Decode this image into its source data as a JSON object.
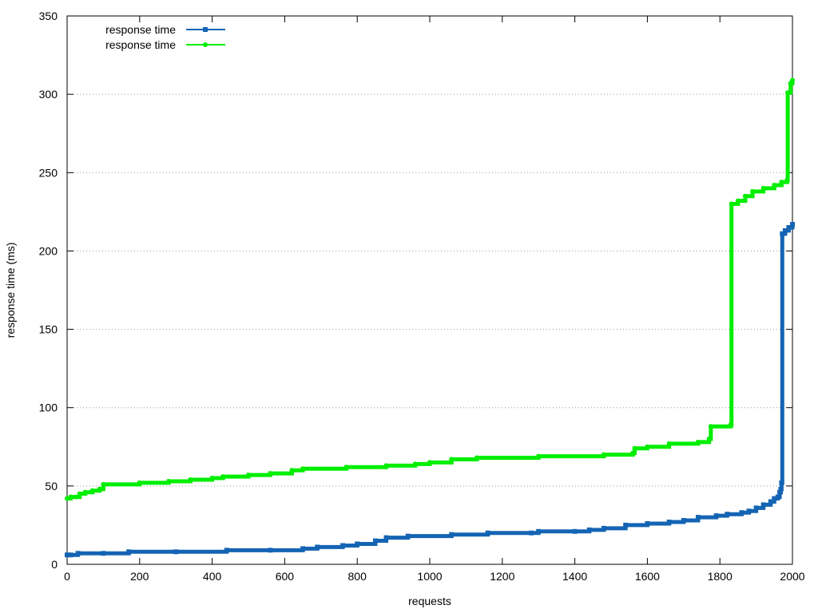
{
  "chart_data": {
    "type": "line",
    "title": "",
    "xlabel": "requests",
    "ylabel": "response time (ms)",
    "xlim": [
      0,
      2000
    ],
    "ylim": [
      0,
      350
    ],
    "xticks": [
      0,
      200,
      400,
      600,
      800,
      1000,
      1200,
      1400,
      1600,
      1800,
      2000
    ],
    "yticks": [
      0,
      50,
      100,
      150,
      200,
      250,
      300,
      350
    ],
    "grid": "horizontal dotted",
    "legend_position": "top-left",
    "series": [
      {
        "name": "response time",
        "color": "#1464b4",
        "marker": "square",
        "points": [
          [
            0,
            6
          ],
          [
            10,
            6
          ],
          [
            30,
            7
          ],
          [
            100,
            7
          ],
          [
            170,
            8
          ],
          [
            300,
            8
          ],
          [
            440,
            9
          ],
          [
            560,
            9
          ],
          [
            650,
            10
          ],
          [
            690,
            11
          ],
          [
            760,
            12
          ],
          [
            800,
            13
          ],
          [
            850,
            15
          ],
          [
            880,
            17
          ],
          [
            940,
            18
          ],
          [
            1060,
            19
          ],
          [
            1160,
            20
          ],
          [
            1280,
            20
          ],
          [
            1300,
            21
          ],
          [
            1400,
            21
          ],
          [
            1440,
            22
          ],
          [
            1480,
            23
          ],
          [
            1540,
            25
          ],
          [
            1600,
            26
          ],
          [
            1660,
            27
          ],
          [
            1700,
            28
          ],
          [
            1740,
            30
          ],
          [
            1790,
            31
          ],
          [
            1820,
            32
          ],
          [
            1860,
            33
          ],
          [
            1880,
            34
          ],
          [
            1900,
            36
          ],
          [
            1920,
            38
          ],
          [
            1940,
            40
          ],
          [
            1950,
            42
          ],
          [
            1960,
            43
          ],
          [
            1965,
            46
          ],
          [
            1968,
            48
          ],
          [
            1970,
            52
          ],
          [
            1972,
            211
          ],
          [
            1980,
            213
          ],
          [
            1990,
            215
          ],
          [
            2000,
            217
          ]
        ]
      },
      {
        "name": "response time",
        "color": "#00ee00",
        "marker": "dot",
        "points": [
          [
            0,
            42
          ],
          [
            10,
            43
          ],
          [
            25,
            43
          ],
          [
            35,
            45
          ],
          [
            50,
            46
          ],
          [
            70,
            47
          ],
          [
            90,
            48
          ],
          [
            100,
            51
          ],
          [
            200,
            52
          ],
          [
            280,
            53
          ],
          [
            340,
            54
          ],
          [
            400,
            55
          ],
          [
            430,
            56
          ],
          [
            500,
            57
          ],
          [
            560,
            58
          ],
          [
            620,
            60
          ],
          [
            650,
            61
          ],
          [
            770,
            62
          ],
          [
            880,
            63
          ],
          [
            960,
            64
          ],
          [
            1000,
            65
          ],
          [
            1060,
            67
          ],
          [
            1130,
            68
          ],
          [
            1300,
            69
          ],
          [
            1480,
            70
          ],
          [
            1560,
            71
          ],
          [
            1565,
            74
          ],
          [
            1600,
            75
          ],
          [
            1660,
            77
          ],
          [
            1740,
            78
          ],
          [
            1770,
            80
          ],
          [
            1775,
            88
          ],
          [
            1830,
            89
          ],
          [
            1832,
            230
          ],
          [
            1850,
            232
          ],
          [
            1870,
            235
          ],
          [
            1890,
            238
          ],
          [
            1920,
            240
          ],
          [
            1950,
            242
          ],
          [
            1970,
            244
          ],
          [
            1985,
            245
          ],
          [
            1987,
            301
          ],
          [
            1995,
            307
          ],
          [
            2000,
            309
          ]
        ]
      }
    ]
  }
}
